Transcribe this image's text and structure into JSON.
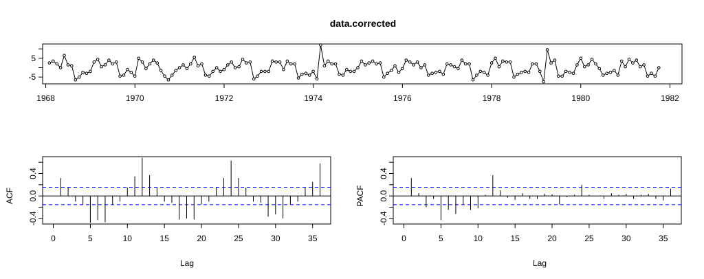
{
  "chart_data": [
    {
      "type": "line",
      "title": "data.corrected",
      "xlabel": "",
      "ylabel": "",
      "xlim": [
        1968,
        1982
      ],
      "ylim": [
        -8,
        12
      ],
      "x_ticks": [
        "1968",
        "1970",
        "1972",
        "1974",
        "1976",
        "1978",
        "1980",
        "1982"
      ],
      "y_ticks": [
        "-5",
        "5"
      ],
      "start": 1968.083,
      "frequency": 12,
      "values": [
        2.5,
        3.5,
        2.0,
        0.0,
        6.5,
        1.5,
        1.0,
        -6.5,
        -5.0,
        -2.5,
        -3.0,
        -2.0,
        3.0,
        4.5,
        0.5,
        1.5,
        4.0,
        2.0,
        3.0,
        -4.5,
        -4.0,
        -1.0,
        -2.5,
        -4.5,
        5.0,
        3.0,
        -0.5,
        2.0,
        4.0,
        2.5,
        -1.5,
        -4.5,
        -6.5,
        -4.0,
        -1.5,
        0.0,
        1.5,
        -0.5,
        2.0,
        5.5,
        1.0,
        2.0,
        -4.0,
        -4.5,
        -2.0,
        0.0,
        -2.0,
        -1.0,
        1.5,
        3.0,
        0.0,
        0.5,
        4.5,
        2.5,
        3.0,
        -6.0,
        -4.5,
        -2.0,
        -2.0,
        -2.0,
        3.5,
        3.0,
        3.0,
        -1.0,
        3.5,
        2.0,
        2.0,
        -5.5,
        -3.5,
        -3.0,
        -4.0,
        -2.0,
        -6.0,
        12.0,
        1.0,
        3.5,
        2.0,
        2.0,
        -3.5,
        -4.0,
        -1.0,
        -2.0,
        -2.0,
        0.0,
        3.5,
        1.5,
        2.5,
        3.5,
        2.0,
        2.5,
        -5.0,
        -3.0,
        -1.5,
        1.0,
        -2.5,
        -0.5,
        4.0,
        3.0,
        1.5,
        3.0,
        0.0,
        1.5,
        -4.0,
        -3.0,
        -2.5,
        -2.0,
        -3.5,
        2.0,
        1.5,
        0.5,
        -0.5,
        4.0,
        2.0,
        2.0,
        -6.5,
        -4.0,
        -2.0,
        -2.5,
        -4.0,
        2.5,
        5.0,
        0.5,
        3.5,
        3.0,
        3.0,
        -5.0,
        -3.5,
        -2.5,
        -2.0,
        -2.5,
        2.0,
        2.0,
        -2.0,
        -7.5,
        9.5,
        2.5,
        4.0,
        -4.5,
        -4.5,
        -2.0,
        -2.5,
        -3.0,
        1.5,
        5.0,
        0.5,
        1.5,
        4.5,
        2.0,
        -0.5,
        -4.0,
        -3.0,
        -2.5,
        -1.5,
        -4.0,
        3.5,
        0.5,
        4.5,
        2.5,
        4.0,
        0.5,
        1.5,
        -4.5,
        -3.0,
        -4.5,
        0.0
      ]
    },
    {
      "type": "bar",
      "ylabel": "ACF",
      "xlabel": "Lag",
      "xlim": [
        0,
        36
      ],
      "ylim": [
        -0.5,
        0.7
      ],
      "x_ticks": [
        "0",
        "5",
        "10",
        "15",
        "20",
        "25",
        "30",
        "35"
      ],
      "y_ticks": [
        "-0.4",
        "0.0",
        "0.4"
      ],
      "ci": 0.155,
      "lags": [
        1,
        2,
        3,
        4,
        5,
        6,
        7,
        8,
        9,
        10,
        11,
        12,
        13,
        14,
        15,
        16,
        17,
        18,
        19,
        20,
        21,
        22,
        23,
        24,
        25,
        26,
        27,
        28,
        29,
        30,
        31,
        32,
        33,
        34,
        35,
        36
      ],
      "values": [
        0.32,
        0.15,
        -0.1,
        -0.15,
        -0.48,
        -0.43,
        -0.47,
        -0.15,
        -0.1,
        0.15,
        0.35,
        0.68,
        0.37,
        0.15,
        -0.1,
        -0.12,
        -0.42,
        -0.4,
        -0.42,
        -0.15,
        -0.1,
        0.15,
        0.32,
        0.63,
        0.32,
        0.15,
        -0.1,
        -0.12,
        -0.37,
        -0.33,
        -0.4,
        -0.15,
        -0.1,
        0.15,
        0.25,
        0.58
      ]
    },
    {
      "type": "bar",
      "ylabel": "PACF",
      "xlabel": "Lag",
      "xlim": [
        0,
        36
      ],
      "ylim": [
        -0.5,
        0.7
      ],
      "x_ticks": [
        "0",
        "5",
        "10",
        "15",
        "20",
        "25",
        "30",
        "35"
      ],
      "y_ticks": [
        "-0.4",
        "0.0",
        "0.4"
      ],
      "ci": 0.155,
      "lags": [
        1,
        2,
        3,
        4,
        5,
        6,
        7,
        8,
        9,
        10,
        11,
        12,
        13,
        14,
        15,
        16,
        17,
        18,
        19,
        20,
        21,
        22,
        23,
        24,
        25,
        26,
        27,
        28,
        29,
        30,
        31,
        32,
        33,
        34,
        35,
        36
      ],
      "values": [
        0.32,
        0.05,
        -0.2,
        -0.05,
        -0.43,
        -0.25,
        -0.32,
        -0.15,
        -0.25,
        -0.22,
        0.02,
        0.37,
        0.1,
        -0.03,
        -0.07,
        0.05,
        -0.05,
        -0.05,
        0.04,
        0.03,
        -0.15,
        -0.02,
        0.02,
        0.2,
        0.02,
        0.0,
        -0.05,
        0.05,
        0.02,
        0.04,
        -0.05,
        0.02,
        0.04,
        -0.05,
        -0.08,
        0.13
      ]
    }
  ]
}
